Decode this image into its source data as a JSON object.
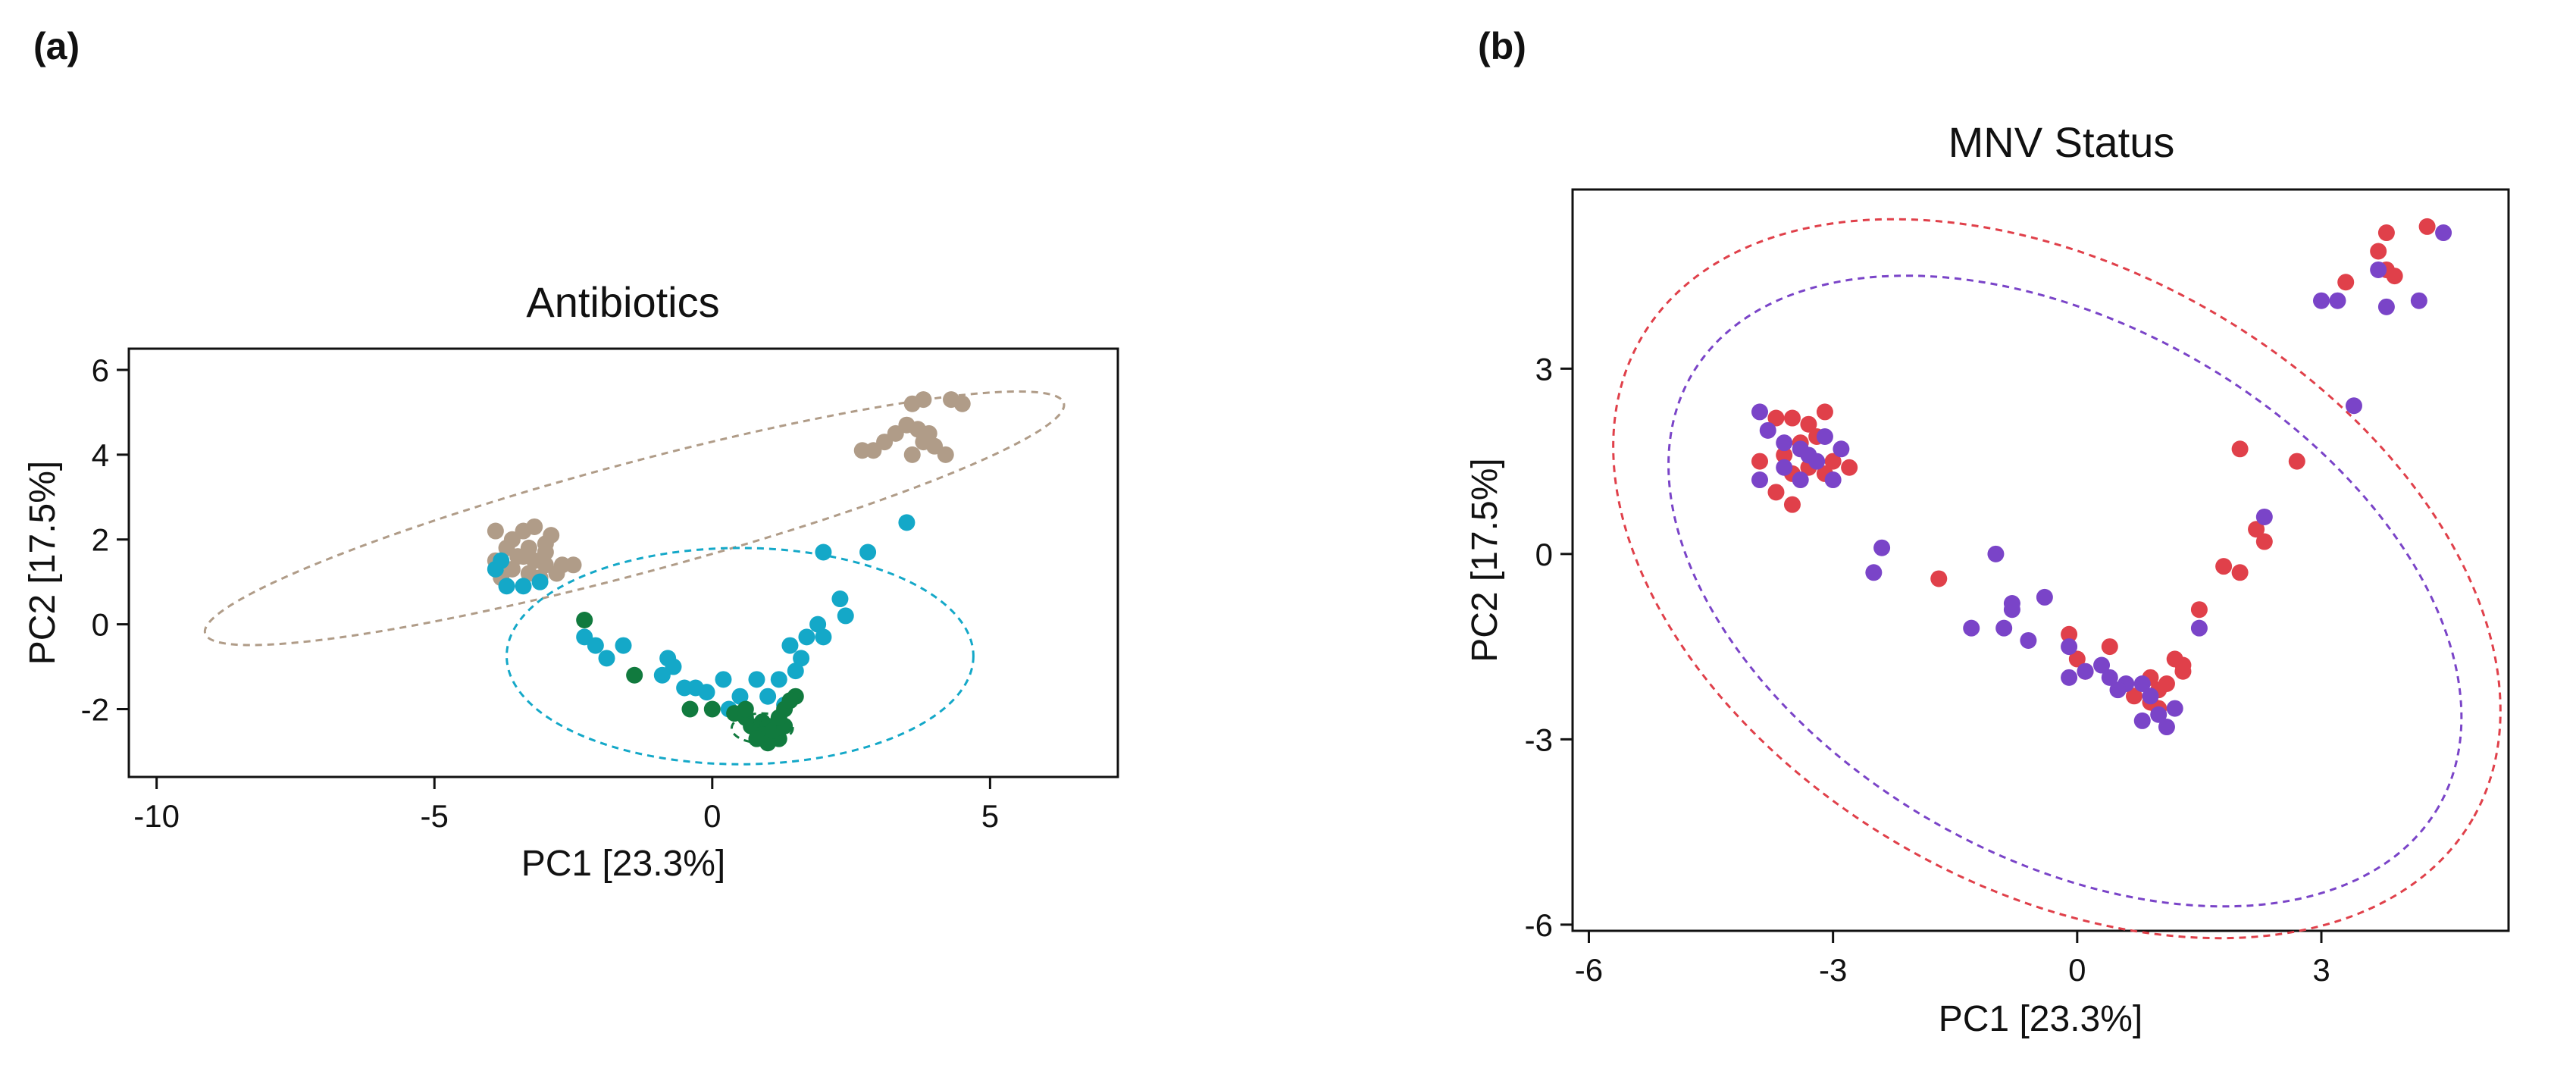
{
  "figure": {
    "panel_a_label": "(a)",
    "panel_b_label": "(b)"
  },
  "chart_data": [
    {
      "id": "a",
      "type": "scatter",
      "title": "Antibiotics",
      "xlabel": "PC1   [23.3%]",
      "ylabel": "PC2   [17.5%]",
      "xlim": [
        -10.5,
        7.3
      ],
      "ylim": [
        -3.6,
        6.5
      ],
      "xticks": [
        -10,
        -5,
        0,
        5
      ],
      "xtick_labels": [
        "-10",
        "-5",
        "0",
        "5"
      ],
      "yticks": [
        -2,
        0,
        2,
        4,
        6
      ],
      "ytick_labels": [
        "-2",
        "0",
        "2",
        "4",
        "6"
      ],
      "grid": false,
      "legend": "none",
      "series": [
        {
          "name": "group-tan",
          "color": "#b09c88",
          "points": [
            [
              3.6,
              5.2
            ],
            [
              3.8,
              5.3
            ],
            [
              4.3,
              5.3
            ],
            [
              4.5,
              5.2
            ],
            [
              3.5,
              4.7
            ],
            [
              3.7,
              4.6
            ],
            [
              3.3,
              4.5
            ],
            [
              3.9,
              4.5
            ],
            [
              3.1,
              4.3
            ],
            [
              4.0,
              4.2
            ],
            [
              2.9,
              4.1
            ],
            [
              3.6,
              4.0
            ],
            [
              4.2,
              4.0
            ],
            [
              2.7,
              4.1
            ],
            [
              3.8,
              4.3
            ],
            [
              -3.9,
              2.2
            ],
            [
              -3.6,
              2.0
            ],
            [
              -3.4,
              2.2
            ],
            [
              -3.2,
              2.3
            ],
            [
              -2.9,
              2.1
            ],
            [
              -3.7,
              1.8
            ],
            [
              -3.3,
              1.8
            ],
            [
              -3.0,
              1.9
            ],
            [
              -3.5,
              1.6
            ],
            [
              -3.2,
              1.5
            ],
            [
              -3.9,
              1.5
            ],
            [
              -3.0,
              1.4
            ],
            [
              -2.7,
              1.4
            ],
            [
              -3.6,
              1.3
            ],
            [
              -3.3,
              1.2
            ],
            [
              -3.8,
              1.1
            ],
            [
              -2.5,
              1.4
            ],
            [
              -3.1,
              1.1
            ],
            [
              -2.8,
              1.2
            ],
            [
              -3.4,
              1.6
            ],
            [
              -3.0,
              1.7
            ]
          ]
        },
        {
          "name": "group-teal",
          "color": "#14a8c8",
          "points": [
            [
              -3.8,
              1.5
            ],
            [
              -3.7,
              0.9
            ],
            [
              -3.4,
              0.9
            ],
            [
              -3.1,
              1.0
            ],
            [
              -3.9,
              1.3
            ],
            [
              3.5,
              2.4
            ],
            [
              2.8,
              1.7
            ],
            [
              2.0,
              1.7
            ],
            [
              2.3,
              0.6
            ],
            [
              2.4,
              0.2
            ],
            [
              1.9,
              0.0
            ],
            [
              1.7,
              -0.3
            ],
            [
              2.0,
              -0.3
            ],
            [
              1.4,
              -0.5
            ],
            [
              1.6,
              -0.8
            ],
            [
              1.5,
              -1.1
            ],
            [
              1.2,
              -1.3
            ],
            [
              -2.3,
              -0.3
            ],
            [
              -2.1,
              -0.5
            ],
            [
              -1.9,
              -0.8
            ],
            [
              -1.6,
              -0.5
            ],
            [
              -0.8,
              -0.8
            ],
            [
              -0.7,
              -1.0
            ],
            [
              -0.5,
              -1.5
            ],
            [
              -0.3,
              -1.5
            ],
            [
              -0.1,
              -1.6
            ],
            [
              0.2,
              -1.3
            ],
            [
              0.5,
              -1.7
            ],
            [
              -0.9,
              -1.2
            ],
            [
              0.8,
              -1.3
            ],
            [
              1.0,
              -1.7
            ],
            [
              1.3,
              -1.9
            ],
            [
              0.3,
              -2.0
            ]
          ]
        },
        {
          "name": "group-green",
          "color": "#117a3e",
          "points": [
            [
              -2.3,
              0.1
            ],
            [
              -1.4,
              -1.2
            ],
            [
              -0.4,
              -2.0
            ],
            [
              0.0,
              -2.0
            ],
            [
              0.4,
              -2.1
            ],
            [
              0.6,
              -2.2
            ],
            [
              0.7,
              -2.4
            ],
            [
              0.8,
              -2.5
            ],
            [
              0.9,
              -2.3
            ],
            [
              1.0,
              -2.4
            ],
            [
              1.1,
              -2.6
            ],
            [
              1.2,
              -2.7
            ],
            [
              0.9,
              -2.6
            ],
            [
              1.0,
              -2.8
            ],
            [
              0.8,
              -2.7
            ],
            [
              1.1,
              -2.5
            ],
            [
              1.3,
              -2.4
            ],
            [
              1.2,
              -2.2
            ],
            [
              1.3,
              -2.0
            ],
            [
              1.5,
              -1.7
            ],
            [
              1.4,
              -1.8
            ],
            [
              0.6,
              -2.0
            ]
          ]
        }
      ],
      "ellipses": [
        {
          "name": "ellipse-tan",
          "color": "#b09c88",
          "cx": -1.4,
          "cy": 2.5,
          "rx": 8.0,
          "ry": 1.3,
          "angle_deg": 15
        },
        {
          "name": "ellipse-teal",
          "color": "#14a8c8",
          "cx": 0.5,
          "cy": -0.75,
          "rx": 4.2,
          "ry": 2.55,
          "angle_deg": 0
        },
        {
          "name": "ellipse-green",
          "color": "#117a3e",
          "cx": 0.9,
          "cy": -2.45,
          "rx": 0.55,
          "ry": 0.35,
          "angle_deg": 0
        }
      ]
    },
    {
      "id": "b",
      "type": "scatter",
      "title": "MNV Status",
      "xlabel": "PC1   [23.3%]",
      "ylabel": "PC2   [17.5%]",
      "xlim": [
        -6.2,
        5.3
      ],
      "ylim": [
        -6.1,
        5.9
      ],
      "xticks": [
        -6,
        -3,
        0,
        3
      ],
      "xtick_labels": [
        "-6",
        "-3",
        "0",
        "3"
      ],
      "yticks": [
        -6,
        -3,
        0,
        3
      ],
      "ytick_labels": [
        "-6",
        "-3",
        "0",
        "3"
      ],
      "grid": false,
      "legend": "none",
      "series": [
        {
          "name": "group-red",
          "color": "#e0404a",
          "points": [
            [
              3.8,
              5.2
            ],
            [
              4.3,
              5.3
            ],
            [
              3.7,
              4.9
            ],
            [
              3.8,
              4.6
            ],
            [
              3.9,
              4.5
            ],
            [
              3.3,
              4.4
            ],
            [
              -3.7,
              2.2
            ],
            [
              -3.5,
              2.2
            ],
            [
              -3.3,
              2.1
            ],
            [
              -3.1,
              2.3
            ],
            [
              -3.4,
              1.8
            ],
            [
              -3.2,
              1.9
            ],
            [
              -3.6,
              1.6
            ],
            [
              -3.0,
              1.5
            ],
            [
              -3.3,
              1.4
            ],
            [
              -3.9,
              1.5
            ],
            [
              -3.5,
              1.3
            ],
            [
              -3.1,
              1.3
            ],
            [
              -2.8,
              1.4
            ],
            [
              -3.7,
              1.0
            ],
            [
              -3.5,
              0.8
            ],
            [
              2.0,
              1.7
            ],
            [
              2.7,
              1.5
            ],
            [
              2.2,
              0.4
            ],
            [
              2.3,
              0.2
            ],
            [
              2.0,
              -0.3
            ],
            [
              1.8,
              -0.2
            ],
            [
              1.5,
              -0.9
            ],
            [
              1.2,
              -1.7
            ],
            [
              1.3,
              -1.8
            ],
            [
              1.3,
              -1.9
            ],
            [
              1.1,
              -2.1
            ],
            [
              0.9,
              -2.0
            ],
            [
              0.7,
              -2.3
            ],
            [
              0.9,
              -2.4
            ],
            [
              1.0,
              -2.5
            ],
            [
              -1.7,
              -0.4
            ],
            [
              -0.1,
              -1.3
            ],
            [
              0.4,
              -1.5
            ],
            [
              0.1,
              -1.9
            ],
            [
              0.0,
              -1.7
            ],
            [
              1.0,
              -2.2
            ]
          ]
        },
        {
          "name": "group-purple",
          "color": "#7a44c8",
          "points": [
            [
              4.5,
              5.2
            ],
            [
              3.7,
              4.6
            ],
            [
              3.0,
              4.1
            ],
            [
              3.2,
              4.1
            ],
            [
              3.8,
              4.0
            ],
            [
              4.2,
              4.1
            ],
            [
              3.4,
              2.4
            ],
            [
              -3.9,
              2.3
            ],
            [
              -3.8,
              2.0
            ],
            [
              -3.6,
              1.8
            ],
            [
              -3.4,
              1.7
            ],
            [
              -3.3,
              1.6
            ],
            [
              -3.2,
              1.5
            ],
            [
              -2.9,
              1.7
            ],
            [
              -3.6,
              1.4
            ],
            [
              -3.0,
              1.2
            ],
            [
              -3.4,
              1.2
            ],
            [
              -3.9,
              1.2
            ],
            [
              -3.1,
              1.9
            ],
            [
              2.3,
              0.6
            ],
            [
              -2.4,
              0.1
            ],
            [
              -2.5,
              -0.3
            ],
            [
              -1.0,
              0.0
            ],
            [
              -1.3,
              -1.2
            ],
            [
              -0.8,
              -0.9
            ],
            [
              -0.6,
              -1.4
            ],
            [
              -0.9,
              -1.2
            ],
            [
              -0.4,
              -0.7
            ],
            [
              -0.1,
              -1.5
            ],
            [
              -0.1,
              -2.0
            ],
            [
              0.1,
              -1.9
            ],
            [
              0.3,
              -1.8
            ],
            [
              0.4,
              -2.0
            ],
            [
              0.6,
              -2.1
            ],
            [
              0.8,
              -2.1
            ],
            [
              0.9,
              -2.3
            ],
            [
              1.0,
              -2.6
            ],
            [
              0.8,
              -2.7
            ],
            [
              1.1,
              -2.8
            ],
            [
              1.2,
              -2.5
            ],
            [
              0.5,
              -2.2
            ],
            [
              1.5,
              -1.2
            ],
            [
              -0.8,
              -0.8
            ]
          ]
        }
      ],
      "ellipses": [
        {
          "name": "ellipse-red",
          "color": "#e0404a",
          "cx": -0.25,
          "cy": -0.4,
          "rx": 5.9,
          "ry": 5.0,
          "angle_deg": -30
        },
        {
          "name": "ellipse-purple",
          "color": "#7a44c8",
          "cx": -0.15,
          "cy": -0.6,
          "rx": 5.3,
          "ry": 4.3,
          "angle_deg": -30
        }
      ]
    }
  ]
}
